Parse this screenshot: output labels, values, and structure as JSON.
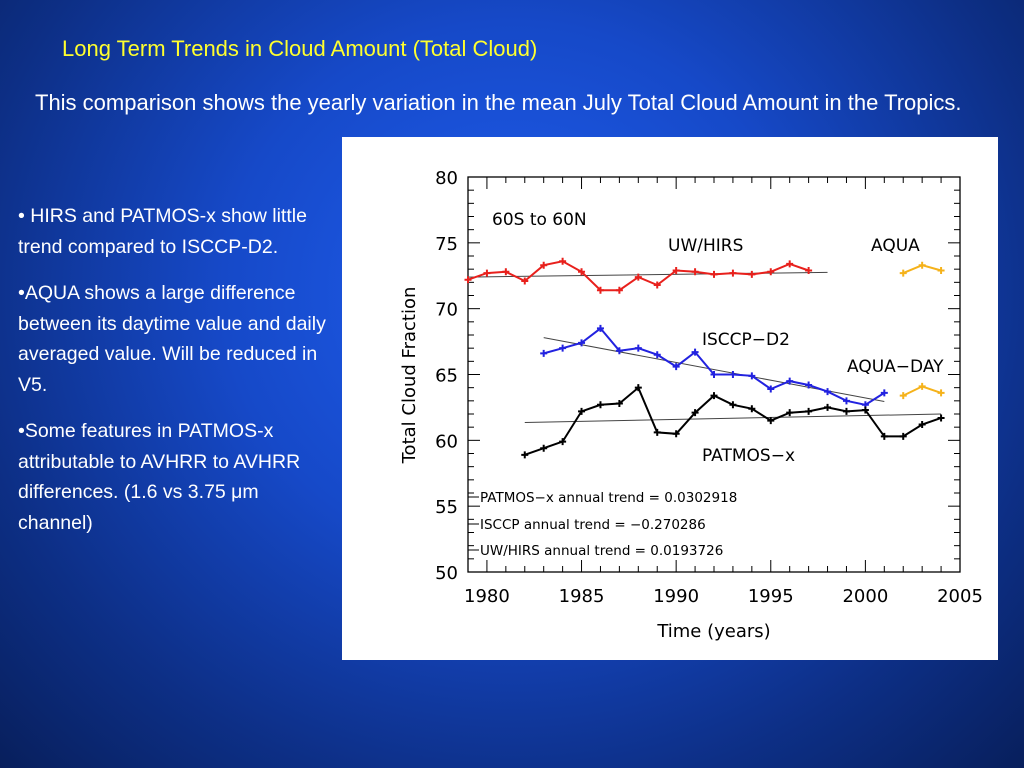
{
  "slide": {
    "title": "Long Term Trends in Cloud Amount (Total Cloud)",
    "intro": "This comparison shows the yearly variation in the mean July Total Cloud Amount in the Tropics.",
    "bullets": [
      "• HIRS and PATMOS-x show little trend compared to ISCCP-D2.",
      "•AQUA shows a large difference between its daytime value and daily averaged value.  Will be reduced in V5.",
      "•Some features in PATMOS-x attributable to AVHRR to AVHRR differences. (1.6 vs 3.75 μm channel)"
    ]
  },
  "colors": {
    "title": "#ffff2e",
    "uw_hirs": "#e8201c",
    "isccp": "#2222e0",
    "patmos": "#000000",
    "aqua": "#f5b21a",
    "trend": "#444444"
  },
  "chart_data": {
    "type": "line",
    "xlabel": "Time (years)",
    "ylabel": "Total Cloud Fraction",
    "xlim": [
      1979,
      2005
    ],
    "ylim": [
      50,
      80
    ],
    "xticks": [
      1980,
      1985,
      1990,
      1995,
      2000,
      2005
    ],
    "yticks": [
      50,
      55,
      60,
      65,
      70,
      75,
      80
    ],
    "region_label": "60S to 60N",
    "series": [
      {
        "name": "UW/HIRS",
        "color": "#e8201c",
        "x": [
          1979,
          1980,
          1981,
          1982,
          1983,
          1984,
          1985,
          1986,
          1987,
          1988,
          1989,
          1990,
          1991,
          1992,
          1993,
          1994,
          1995,
          1996,
          1997
        ],
        "y": [
          72.2,
          72.7,
          72.8,
          72.1,
          73.3,
          73.6,
          72.8,
          71.4,
          71.4,
          72.4,
          71.8,
          72.9,
          72.8,
          72.6,
          72.7,
          72.6,
          72.8,
          73.4,
          72.9
        ]
      },
      {
        "name": "ISCCP-D2",
        "color": "#2222e0",
        "x": [
          1983,
          1984,
          1985,
          1986,
          1987,
          1988,
          1989,
          1990,
          1991,
          1992,
          1993,
          1994,
          1995,
          1996,
          1997,
          1998,
          1999,
          2000,
          2001
        ],
        "y": [
          66.6,
          67.0,
          67.4,
          68.5,
          66.8,
          67.0,
          66.5,
          65.6,
          66.7,
          65.0,
          65.0,
          64.9,
          63.9,
          64.5,
          64.2,
          63.7,
          63.0,
          62.7,
          63.6
        ]
      },
      {
        "name": "PATMOS-x",
        "color": "#000000",
        "x": [
          1982,
          1983,
          1984,
          1985,
          1986,
          1987,
          1988,
          1989,
          1990,
          1991,
          1992,
          1993,
          1994,
          1995,
          1996,
          1997,
          1998,
          1999,
          2000,
          2001,
          2002,
          2003,
          2004
        ],
        "y": [
          58.9,
          59.4,
          59.9,
          62.2,
          62.7,
          62.8,
          64.0,
          60.6,
          60.5,
          62.1,
          63.4,
          62.7,
          62.4,
          61.5,
          62.1,
          62.2,
          62.5,
          62.2,
          62.3,
          60.3,
          60.3,
          61.2,
          61.7
        ]
      },
      {
        "name": "AQUA",
        "color": "#f5b21a",
        "x": [
          2002,
          2003,
          2004
        ],
        "y": [
          72.7,
          73.3,
          72.9
        ]
      },
      {
        "name": "AQUA-DAY",
        "color": "#f5b21a",
        "x": [
          2002,
          2003,
          2004
        ],
        "y": [
          63.4,
          64.1,
          63.6
        ]
      }
    ],
    "trend_lines": [
      {
        "series": "UW/HIRS",
        "x": [
          1979,
          1998
        ],
        "y": [
          72.4,
          72.76
        ]
      },
      {
        "series": "ISCCP",
        "x": [
          1983,
          2001
        ],
        "y": [
          67.8,
          62.95
        ]
      },
      {
        "series": "PATMOS-x",
        "x": [
          1982,
          2004
        ],
        "y": [
          61.35,
          62.0
        ]
      }
    ],
    "annotations": {
      "uw_hirs": "UW/HIRS",
      "aqua": "AQUA",
      "isccp": "ISCCP−D2",
      "aqua_day": "AQUA−DAY",
      "patmos": "PATMOS−x"
    },
    "trend_legend": [
      "PATMOS−x annual trend = 0.0302918",
      "ISCCP annual trend = −0.270286",
      "UW/HIRS annual trend = 0.0193726"
    ]
  }
}
